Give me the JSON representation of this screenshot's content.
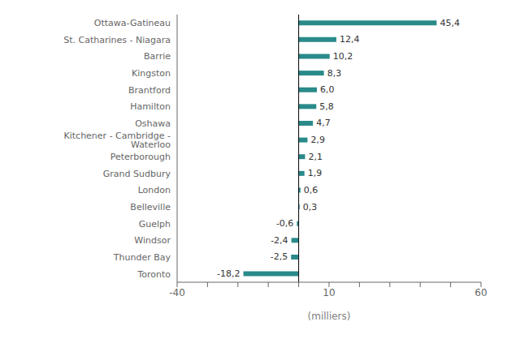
{
  "chart_data": {
    "type": "bar",
    "orientation": "horizontal",
    "categories": [
      "Toronto",
      "Thunder Bay",
      "Windsor",
      "Guelph",
      "Belleville",
      "London",
      "Grand Sudbury",
      "Peterborough",
      "Kitchener - Cambridge - Waterloo",
      "Oshawa",
      "Hamilton",
      "Brantford",
      "Kingston",
      "Barrie",
      "St. Catharines - Niagara",
      "Ottawa-Gatineau"
    ],
    "values": [
      -18.2,
      -2.5,
      -2.4,
      -0.6,
      0.3,
      0.6,
      1.9,
      2.1,
      2.9,
      4.7,
      5.8,
      6.0,
      8.3,
      10.2,
      12.4,
      45.4
    ],
    "value_labels": [
      "-18,2",
      "-2,5",
      "-2,4",
      "-0,6",
      "0,3",
      "0,6",
      "1,9",
      "2,1",
      "2,9",
      "4,7",
      "5,8",
      "6,0",
      "8,3",
      "10,2",
      "12,4",
      "45,4"
    ],
    "data_labels": true,
    "color": "#2a8a8a",
    "xlabel": "(milliers)",
    "xlim": [
      -40,
      60
    ],
    "xticks": [
      -40,
      {
        "value": -30,
        "label": ""
      },
      {
        "value": -20,
        "label": ""
      },
      {
        "value": -10,
        "label": ""
      },
      {
        "value": 0,
        "label": ""
      },
      10,
      {
        "value": 20,
        "label": ""
      },
      {
        "value": 30,
        "label": ""
      },
      {
        "value": 40,
        "label": ""
      },
      {
        "value": 50,
        "label": ""
      },
      60
    ],
    "grid": false
  }
}
